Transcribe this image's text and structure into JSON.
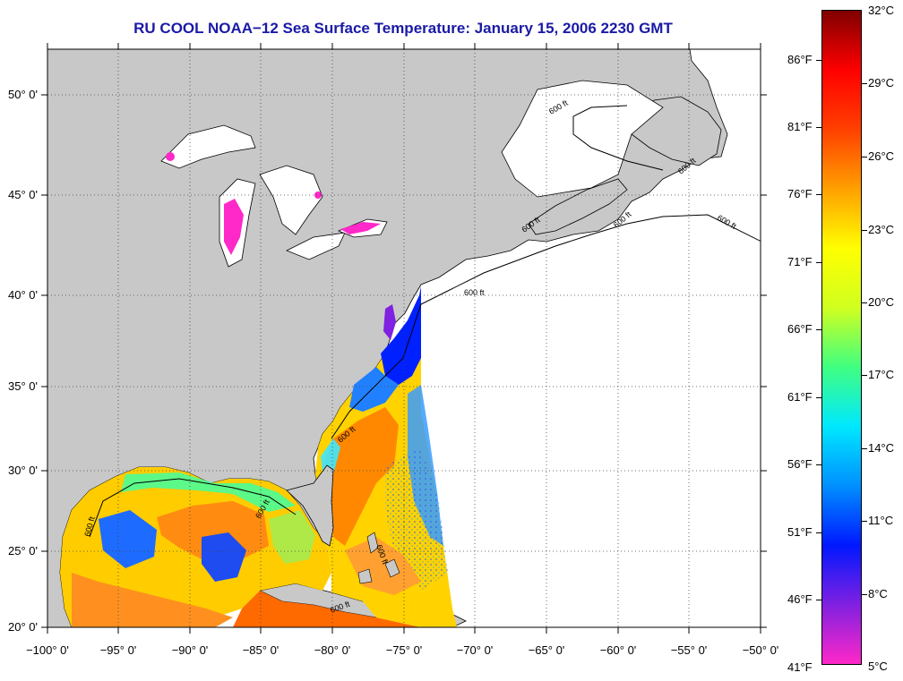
{
  "title": "RU COOL  NOAA−12  Sea Surface Temperature:  January 15, 2006 2230 GMT",
  "map": {
    "lat_labels": [
      "50° 0'",
      "45° 0'",
      "40° 0'",
      "35° 0'",
      "30° 0'",
      "25° 0'",
      "20° 0'"
    ],
    "lon_labels": [
      "−100° 0'",
      "−95° 0'",
      "−90° 0'",
      "−85° 0'",
      "−80° 0'",
      "−75° 0'",
      "−70° 0'",
      "−65° 0'",
      "−60° 0'",
      "−55° 0'",
      "−50° 0'"
    ],
    "lat_range": [
      20,
      52.5
    ],
    "lon_range": [
      -100,
      -50
    ],
    "grid": "dotted",
    "isobath_label": "600 ft",
    "land_color": "#c8c8c8",
    "no_data_color": "#ffffff"
  },
  "colorbar": {
    "fahrenheit_labels": [
      "86°F",
      "81°F",
      "76°F",
      "71°F",
      "66°F",
      "61°F",
      "56°F",
      "51°F",
      "46°F",
      "41°F"
    ],
    "celsius_labels": [
      "32°C",
      "29°C",
      "26°C",
      "23°C",
      "20°C",
      "17°C",
      "14°C",
      "11°C",
      "8°C",
      "5°C"
    ],
    "range_c": [
      5,
      32
    ],
    "colors": [
      "#ff28c8",
      "#8020e0",
      "#0018ff",
      "#0090ff",
      "#00e8ff",
      "#40ff80",
      "#d0ff20",
      "#ffff00",
      "#ffa000",
      "#ff4000",
      "#ff0000",
      "#800000"
    ]
  }
}
